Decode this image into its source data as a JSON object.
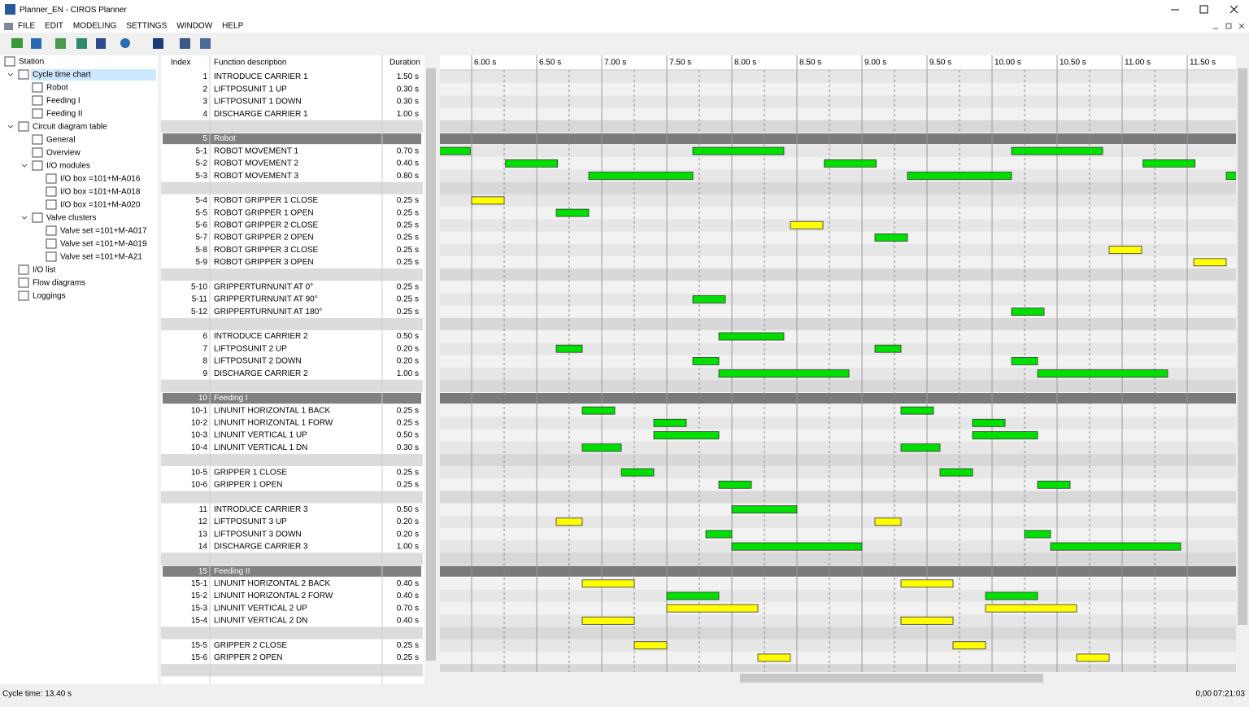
{
  "window": {
    "title": "Planner_EN - CIROS Planner"
  },
  "menu": [
    "FILE",
    "EDIT",
    "MODELING",
    "SETTINGS",
    "WINDOW",
    "HELP"
  ],
  "tree": [
    {
      "label": "Station",
      "children": [
        {
          "label": "Cycle time chart",
          "selected": true,
          "children": [
            {
              "label": "Robot"
            },
            {
              "label": "Feeding I"
            },
            {
              "label": "Feeding II"
            }
          ]
        },
        {
          "label": "Circuit diagram table",
          "children": [
            {
              "label": "General"
            },
            {
              "label": "Overview"
            },
            {
              "label": "I/O modules",
              "children": [
                {
                  "label": "I/O box =101+M-A016"
                },
                {
                  "label": "I/O box =101+M-A018"
                },
                {
                  "label": "I/O box =101+M-A020"
                }
              ]
            },
            {
              "label": "Valve clusters",
              "children": [
                {
                  "label": "Valve set =101+M-A017"
                },
                {
                  "label": "Valve set =101+M-A019"
                },
                {
                  "label": "Valve set =101+M-A21"
                }
              ]
            }
          ]
        },
        {
          "label": "I/O list"
        },
        {
          "label": "Flow diagrams"
        },
        {
          "label": "Loggings"
        }
      ]
    }
  ],
  "table": {
    "headers": [
      "Index",
      "Function description",
      "Duration"
    ],
    "sections": [
      {
        "blocks": [
          [
            {
              "index": "1",
              "description": "INTRODUCE CARRIER 1",
              "duration": "1.50 s",
              "color": "#00e000",
              "bars": []
            },
            {
              "index": "2",
              "description": "LIFTPOSUNIT 1 UP",
              "duration": "0.30 s",
              "color": "#00e000",
              "bars": []
            },
            {
              "index": "3",
              "description": "LIFTPOSUNIT 1 DOWN",
              "duration": "0.30 s",
              "color": "#00e000",
              "bars": []
            },
            {
              "index": "4",
              "description": "DISCHARGE CARRIER 1",
              "duration": "1.00 s",
              "color": "#00e000",
              "bars": []
            }
          ]
        ]
      },
      {
        "group": {
          "index": "5",
          "description": "Robot"
        },
        "blocks": [
          [
            {
              "index": "5-1",
              "description": "ROBOT MOVEMENT 1",
              "duration": "0.70 s",
              "color": "#00e000",
              "bars": [
                [
                  5.29,
                  5.99
                ],
                [
                  7.7,
                  8.4
                ],
                [
                  10.15,
                  10.85
                ]
              ]
            },
            {
              "index": "5-2",
              "description": "ROBOT MOVEMENT 2",
              "duration": "0.40 s",
              "color": "#00e000",
              "bars": [
                [
                  6.26,
                  6.66
                ],
                [
                  8.71,
                  9.11
                ],
                [
                  11.16,
                  11.56
                ]
              ]
            },
            {
              "index": "5-3",
              "description": "ROBOT MOVEMENT 3",
              "duration": "0.80 s",
              "color": "#00e000",
              "bars": [
                [
                  6.9,
                  7.7
                ],
                [
                  9.35,
                  10.15
                ],
                [
                  11.8,
                  12.6
                ]
              ]
            }
          ],
          [
            {
              "index": "5-4",
              "description": "ROBOT GRIPPER 1 CLOSE",
              "duration": "0.25 s",
              "color": "#ffff00",
              "bars": [
                [
                  6.0,
                  6.25
                ]
              ]
            },
            {
              "index": "5-5",
              "description": "ROBOT GRIPPER 1 OPEN",
              "duration": "0.25 s",
              "color": "#00e000",
              "bars": [
                [
                  6.65,
                  6.9
                ]
              ]
            },
            {
              "index": "5-6",
              "description": "ROBOT GRIPPER 2 CLOSE",
              "duration": "0.25 s",
              "color": "#ffff00",
              "bars": [
                [
                  8.45,
                  8.7
                ]
              ]
            },
            {
              "index": "5-7",
              "description": "ROBOT GRIPPER 2 OPEN",
              "duration": "0.25 s",
              "color": "#00e000",
              "bars": [
                [
                  9.1,
                  9.35
                ]
              ]
            },
            {
              "index": "5-8",
              "description": "ROBOT GRIPPER 3 CLOSE",
              "duration": "0.25 s",
              "color": "#ffff00",
              "bars": [
                [
                  10.9,
                  11.15
                ]
              ]
            },
            {
              "index": "5-9",
              "description": "ROBOT GRIPPER 3 OPEN",
              "duration": "0.25 s",
              "color": "#ffff00",
              "bars": [
                [
                  11.55,
                  11.8
                ]
              ]
            }
          ],
          [
            {
              "index": "5-10",
              "description": "GRIPPERTURNUNIT AT 0°",
              "duration": "0.25 s",
              "color": "#00e000",
              "bars": []
            },
            {
              "index": "5-11",
              "description": "GRIPPERTURNUNIT AT 90°",
              "duration": "0.25 s",
              "color": "#00e000",
              "bars": [
                [
                  7.7,
                  7.95
                ]
              ]
            },
            {
              "index": "5-12",
              "description": "GRIPPERTURNUNIT AT 180°",
              "duration": "0.25 s",
              "color": "#00e000",
              "bars": [
                [
                  10.15,
                  10.4
                ]
              ]
            }
          ],
          [
            {
              "index": "6",
              "description": "INTRODUCE CARRIER 2",
              "duration": "0.50 s",
              "color": "#00e000",
              "bars": [
                [
                  7.9,
                  8.4
                ]
              ]
            },
            {
              "index": "7",
              "description": "LIFTPOSUNIT 2 UP",
              "duration": "0.20 s",
              "color": "#00e000",
              "bars": [
                [
                  6.65,
                  6.85
                ],
                [
                  9.1,
                  9.3
                ]
              ]
            },
            {
              "index": "8",
              "description": "LIFTPOSUNIT 2 DOWN",
              "duration": "0.20 s",
              "color": "#00e000",
              "bars": [
                [
                  7.7,
                  7.9
                ],
                [
                  10.15,
                  10.35
                ]
              ]
            },
            {
              "index": "9",
              "description": "DISCHARGE CARRIER 2",
              "duration": "1.00 s",
              "color": "#00e000",
              "bars": [
                [
                  7.9,
                  8.9
                ],
                [
                  10.35,
                  11.35
                ]
              ]
            }
          ]
        ]
      },
      {
        "group": {
          "index": "10",
          "description": "Feeding I"
        },
        "blocks": [
          [
            {
              "index": "10-1",
              "description": "LINUNIT HORIZONTAL 1 BACK",
              "duration": "0.25 s",
              "color": "#00e000",
              "bars": [
                [
                  6.85,
                  7.1
                ],
                [
                  9.3,
                  9.55
                ]
              ]
            },
            {
              "index": "10-2",
              "description": "LINUNIT HORIZONTAL 1 FORW",
              "duration": "0.25 s",
              "color": "#00e000",
              "bars": [
                [
                  7.4,
                  7.65
                ],
                [
                  9.85,
                  10.1
                ]
              ]
            },
            {
              "index": "10-3",
              "description": "LINUNIT VERTICAL 1 UP",
              "duration": "0.50 s",
              "color": "#00e000",
              "bars": [
                [
                  7.4,
                  7.9
                ],
                [
                  9.85,
                  10.35
                ]
              ]
            },
            {
              "index": "10-4",
              "description": "LINUNIT VERTICAL 1 DN",
              "duration": "0.30 s",
              "color": "#00e000",
              "bars": [
                [
                  6.85,
                  7.15
                ],
                [
                  9.3,
                  9.6
                ]
              ]
            }
          ],
          [
            {
              "index": "10-5",
              "description": "GRIPPER 1 CLOSE",
              "duration": "0.25 s",
              "color": "#00e000",
              "bars": [
                [
                  7.15,
                  7.4
                ],
                [
                  9.6,
                  9.85
                ]
              ]
            },
            {
              "index": "10-6",
              "description": "GRIPPER 1 OPEN",
              "duration": "0.25 s",
              "color": "#00e000",
              "bars": [
                [
                  7.9,
                  8.15
                ],
                [
                  10.35,
                  10.6
                ]
              ]
            }
          ],
          [
            {
              "index": "11",
              "description": "INTRODUCE CARRIER 3",
              "duration": "0.50 s",
              "color": "#00e000",
              "bars": [
                [
                  8.0,
                  8.5
                ]
              ]
            },
            {
              "index": "12",
              "description": "LIFTPOSUNIT 3 UP",
              "duration": "0.20 s",
              "color": "#ffff00",
              "bars": [
                [
                  6.65,
                  6.85
                ],
                [
                  9.1,
                  9.3
                ]
              ]
            },
            {
              "index": "13",
              "description": "LIFTPOSUNIT 3 DOWN",
              "duration": "0.20 s",
              "color": "#00e000",
              "bars": [
                [
                  7.8,
                  8.0
                ],
                [
                  10.25,
                  10.45
                ]
              ]
            },
            {
              "index": "14",
              "description": "DISCHARGE CARRIER 3",
              "duration": "1.00 s",
              "color": "#00e000",
              "bars": [
                [
                  8.0,
                  9.0
                ],
                [
                  10.45,
                  11.45
                ]
              ]
            }
          ]
        ]
      },
      {
        "group": {
          "index": "15",
          "description": "Feeding II"
        },
        "blocks": [
          [
            {
              "index": "15-1",
              "description": "LINUNIT HORIZONTAL 2 BACK",
              "duration": "0.40 s",
              "color": "#ffff00",
              "bars": [
                [
                  6.85,
                  7.25
                ],
                [
                  9.3,
                  9.7
                ]
              ]
            },
            {
              "index": "15-2",
              "description": "LINUNIT HORIZONTAL 2 FORW",
              "duration": "0.40 s",
              "color": "#00e000",
              "bars": [
                [
                  7.5,
                  7.9
                ],
                [
                  9.95,
                  10.35
                ]
              ]
            },
            {
              "index": "15-3",
              "description": "LINUNIT VERTICAL 2 UP",
              "duration": "0.70 s",
              "color": "#ffff00",
              "bars": [
                [
                  7.5,
                  8.2
                ],
                [
                  9.95,
                  10.65
                ]
              ]
            },
            {
              "index": "15-4",
              "description": "LINUNIT VERTICAL 2 DN",
              "duration": "0.40 s",
              "color": "#ffff00",
              "bars": [
                [
                  6.85,
                  7.25
                ],
                [
                  9.3,
                  9.7
                ]
              ]
            }
          ],
          [
            {
              "index": "15-5",
              "description": "GRIPPER 2 CLOSE",
              "duration": "0.25 s",
              "color": "#ffff00",
              "bars": [
                [
                  7.25,
                  7.5
                ],
                [
                  9.7,
                  9.95
                ]
              ]
            },
            {
              "index": "15-6",
              "description": "GRIPPER 2 OPEN",
              "duration": "0.25 s",
              "color": "#ffff00",
              "bars": [
                [
                  8.2,
                  8.45
                ],
                [
                  10.65,
                  10.9
                ]
              ]
            }
          ]
        ]
      }
    ]
  },
  "timeline": {
    "xlim": [
      5.756,
      11.875
    ],
    "ticks": [
      {
        "value": 6,
        "label": "6.00 s"
      },
      {
        "value": 6.5,
        "label": "6.50 s"
      },
      {
        "value": 7,
        "label": "7.00 s"
      },
      {
        "value": 7.5,
        "label": "7.50 s"
      },
      {
        "value": 8,
        "label": "8.00 s"
      },
      {
        "value": 8.5,
        "label": "8.50 s"
      },
      {
        "value": 9,
        "label": "9.00 s"
      },
      {
        "value": 9.5,
        "label": "9.50 s"
      },
      {
        "value": 10,
        "label": "10.00 s"
      },
      {
        "value": 10.5,
        "label": "10.50 s"
      },
      {
        "value": 11,
        "label": "11.00 s"
      },
      {
        "value": 11.5,
        "label": "11.50 s"
      }
    ]
  },
  "status": {
    "left": "Cycle time: 13.40 s",
    "value": "0,00",
    "time": "07:21:03"
  }
}
